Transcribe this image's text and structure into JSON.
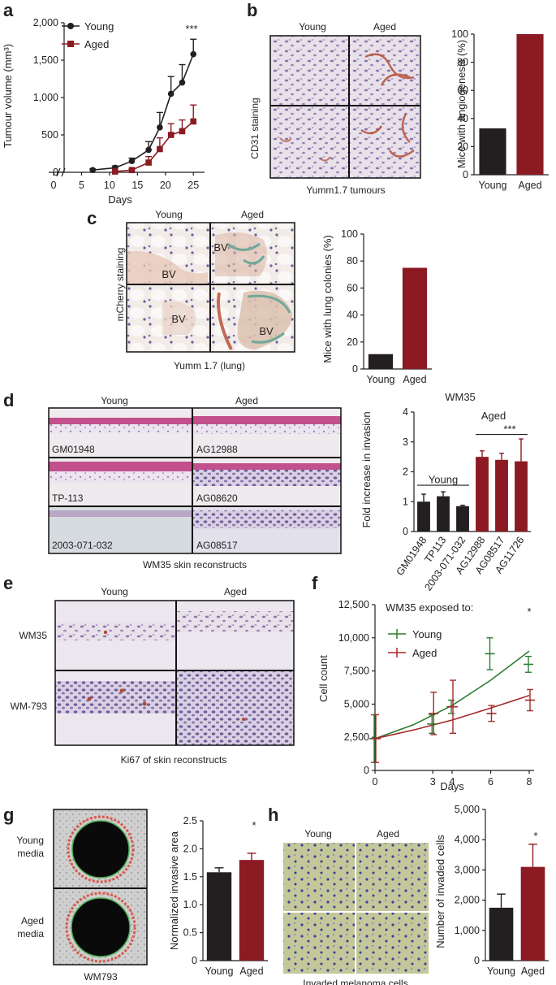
{
  "panels": [
    "a",
    "b",
    "c",
    "d",
    "e",
    "f",
    "g",
    "h"
  ],
  "colors": {
    "young": "#231f20",
    "aged": "#8b1a22",
    "f_young": "#2e7d32",
    "f_aged": "#a52a2a",
    "ihc_bg": "#e8dde6",
    "he_pink": "#c2508c",
    "h_bg": "#c5c99a"
  },
  "chart_data": [
    {
      "id": "a",
      "type": "line",
      "title": "",
      "xlabel": "Days",
      "ylabel": "Tumour volume (mm³)",
      "xlim": [
        0,
        27
      ],
      "ylim": [
        0,
        2000
      ],
      "xticks": [
        0,
        5,
        10,
        15,
        20,
        25
      ],
      "yticks": [
        0,
        500,
        1000,
        1500,
        2000
      ],
      "ytick_labels": [
        "0",
        "500",
        "1,000",
        "1,500",
        "2,000"
      ],
      "legend": "top-left",
      "annotation": "***",
      "series": [
        {
          "name": "Young",
          "marker": "circle",
          "x": [
            7,
            11,
            14,
            17,
            19,
            21,
            23,
            25
          ],
          "y": [
            30,
            60,
            150,
            300,
            600,
            1050,
            1200,
            1580
          ],
          "err": [
            15,
            25,
            40,
            110,
            200,
            230,
            240,
            200
          ]
        },
        {
          "name": "Aged",
          "marker": "square",
          "x": [
            11,
            14,
            17,
            19,
            21,
            23,
            25
          ],
          "y": [
            10,
            30,
            130,
            310,
            500,
            550,
            680
          ],
          "err": [
            5,
            15,
            80,
            150,
            150,
            150,
            220
          ]
        }
      ]
    },
    {
      "id": "b",
      "type": "bar",
      "ylabel": "Mice with angiogenesis (%)",
      "ylim": [
        0,
        100
      ],
      "yticks": [
        0,
        20,
        40,
        60,
        80,
        100
      ],
      "categories": [
        "Young",
        "Aged"
      ],
      "values": [
        33,
        100
      ],
      "micrograph": {
        "col_labels": [
          "Young",
          "Aged"
        ],
        "side_label": "CD31 staining",
        "caption": "Yumm1.7 tumours"
      }
    },
    {
      "id": "c",
      "type": "bar",
      "ylabel": "Mice with lung colonies (%)",
      "ylim": [
        0,
        100
      ],
      "yticks": [
        0,
        20,
        40,
        60,
        80,
        100
      ],
      "categories": [
        "Young",
        "Aged"
      ],
      "values": [
        11,
        75
      ],
      "micrograph": {
        "col_labels": [
          "Young",
          "Aged"
        ],
        "side_label": "mCherry staining",
        "caption": "Yumm 1.7 (lung)",
        "insets": [
          "BV",
          "BV",
          "BV",
          "BV"
        ]
      }
    },
    {
      "id": "d",
      "type": "bar",
      "title": "WM35",
      "ylabel": "Fold increase in invasion",
      "ylim": [
        0,
        4
      ],
      "yticks": [
        0,
        1,
        2,
        3,
        4
      ],
      "categories": [
        "GM01948",
        "TP113",
        "2003-071-032",
        "AG12988",
        "AG08517",
        "AG11726"
      ],
      "values": [
        1.0,
        1.18,
        0.85,
        2.5,
        2.4,
        2.35
      ],
      "err": [
        0.25,
        0.15,
        0.03,
        0.2,
        0.22,
        0.75
      ],
      "group_labels": {
        "young": "Young",
        "aged": "Aged"
      },
      "annotation": "***",
      "micrograph": {
        "col_labels": [
          "Young",
          "Aged"
        ],
        "caption": "WM35 skin reconstructs",
        "insets": [
          "GM01948",
          "AG12988",
          "TP-113",
          "AG08620",
          "2003-071-032",
          "AG08517"
        ]
      }
    },
    {
      "id": "e",
      "type": "image",
      "micrograph": {
        "col_labels": [
          "Young",
          "Aged"
        ],
        "row_labels": [
          "WM35",
          "WM-793"
        ],
        "caption": "Ki67 of skin reconstructs"
      }
    },
    {
      "id": "f",
      "type": "line",
      "xlabel": "Days",
      "ylabel": "Cell count",
      "xlim": [
        0,
        8
      ],
      "ylim": [
        0,
        12500
      ],
      "xticks": [
        0,
        3,
        4,
        6,
        8
      ],
      "yticks": [
        0,
        2500,
        5000,
        7500,
        10000,
        12500
      ],
      "ytick_labels": [
        "0",
        "2,500",
        "5,000",
        "7,500",
        "10,000",
        "12,500"
      ],
      "legend_title": "WM35 exposed to:",
      "legend": "top-left",
      "annotation": "*",
      "series": [
        {
          "name": "Young",
          "x": [
            0,
            3,
            4,
            6,
            8
          ],
          "y": [
            2400,
            3500,
            4800,
            8800,
            8000
          ],
          "err": [
            1800,
            700,
            500,
            1200,
            600
          ]
        },
        {
          "name": "Aged",
          "x": [
            0,
            3,
            4,
            6,
            8
          ],
          "y": [
            2400,
            4300,
            4800,
            4300,
            5300
          ],
          "err": [
            1800,
            1600,
            2000,
            600,
            800
          ]
        }
      ],
      "fits": [
        {
          "name": "Young",
          "x": [
            0,
            2,
            4,
            6,
            8
          ],
          "y": [
            2400,
            3450,
            4900,
            6800,
            9000
          ]
        },
        {
          "name": "Aged",
          "x": [
            0,
            2,
            4,
            6,
            8
          ],
          "y": [
            2400,
            3050,
            3800,
            4700,
            5650
          ]
        }
      ]
    },
    {
      "id": "g",
      "type": "bar",
      "ylabel": "Normalized invasive area",
      "ylim": [
        0,
        2.5
      ],
      "yticks": [
        0.0,
        0.5,
        1.0,
        1.5,
        2.0,
        2.5
      ],
      "ytick_labels": [
        "0",
        "0.5",
        "1.0",
        "1.5",
        "2.0",
        "2.5"
      ],
      "categories": [
        "Young",
        "Aged"
      ],
      "values": [
        1.58,
        1.8
      ],
      "err": [
        0.08,
        0.12
      ],
      "annotation": "*",
      "micrograph": {
        "row_labels": [
          "Young\nmedia",
          "Aged\nmedia"
        ],
        "caption": "WM793"
      }
    },
    {
      "id": "h",
      "type": "bar",
      "ylabel": "Number of invaded cells",
      "ylim": [
        0,
        5000
      ],
      "yticks": [
        0,
        1000,
        2000,
        3000,
        4000,
        5000
      ],
      "ytick_labels": [
        "0",
        "1,000",
        "2,000",
        "3,000",
        "4,000",
        "5,000"
      ],
      "categories": [
        "Young",
        "Aged"
      ],
      "values": [
        1750,
        3100
      ],
      "err": [
        450,
        750
      ],
      "annotation": "*",
      "micrograph": {
        "col_labels": [
          "Young",
          "Aged"
        ],
        "caption": "Invaded melanoma cells"
      }
    }
  ]
}
